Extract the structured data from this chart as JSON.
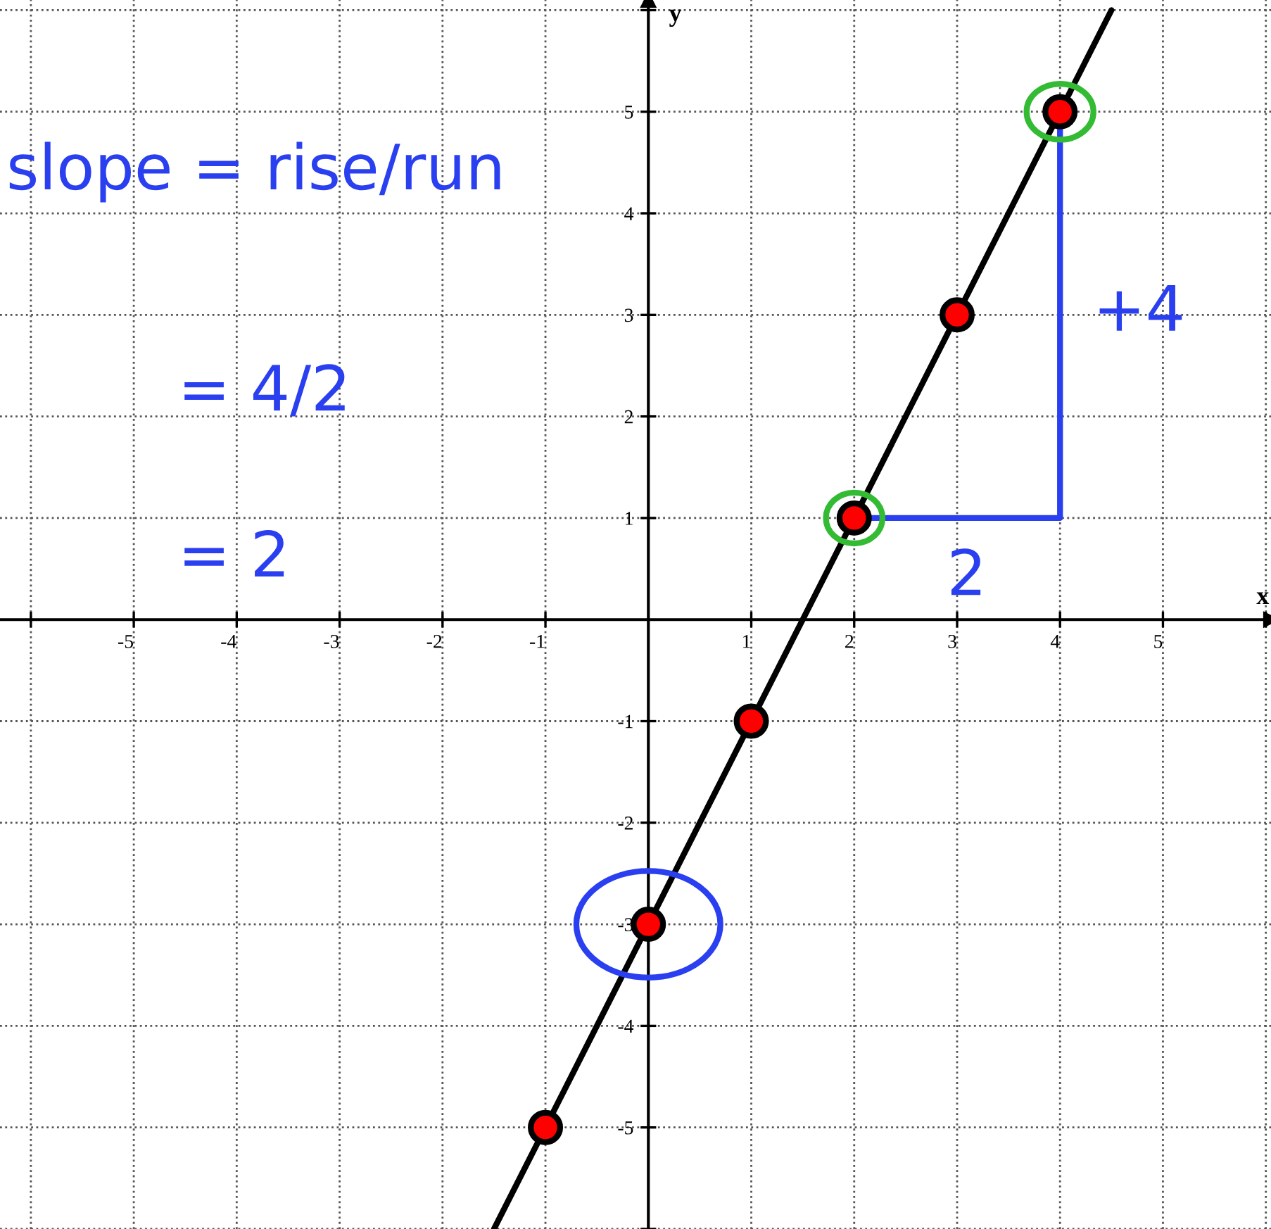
{
  "chart_data": {
    "type": "scatter",
    "xlabel": "x",
    "ylabel": "y",
    "xlim": [
      -6.3,
      6.05
    ],
    "ylim": [
      -6.0,
      6.1
    ],
    "xticks": [
      {
        "value": -6,
        "label": null
      },
      -5,
      -4,
      -3,
      -2,
      -1,
      1,
      2,
      3,
      4,
      5,
      {
        "value": 6,
        "label": null
      }
    ],
    "yticks": [
      {
        "value": -6,
        "label": null
      },
      -5,
      -4,
      -3,
      -2,
      -1,
      1,
      2,
      3,
      4,
      5,
      {
        "value": 6,
        "label": null
      }
    ],
    "grid": true,
    "marker": "circle",
    "series": [
      {
        "type": "line",
        "color": "#000000",
        "x": [
          -1.5,
          4.5
        ],
        "values": [
          -6,
          6
        ],
        "marker": "none",
        "line_style": "solid"
      },
      {
        "color": "#ff0000",
        "x": [
          -1,
          0,
          1,
          2,
          3,
          4
        ],
        "values": [
          -5,
          -3,
          -1,
          1,
          3,
          5
        ]
      }
    ],
    "annotations": [
      "slope = rise/run",
      "= 4/2",
      "= 2",
      "+4",
      "2"
    ]
  }
}
